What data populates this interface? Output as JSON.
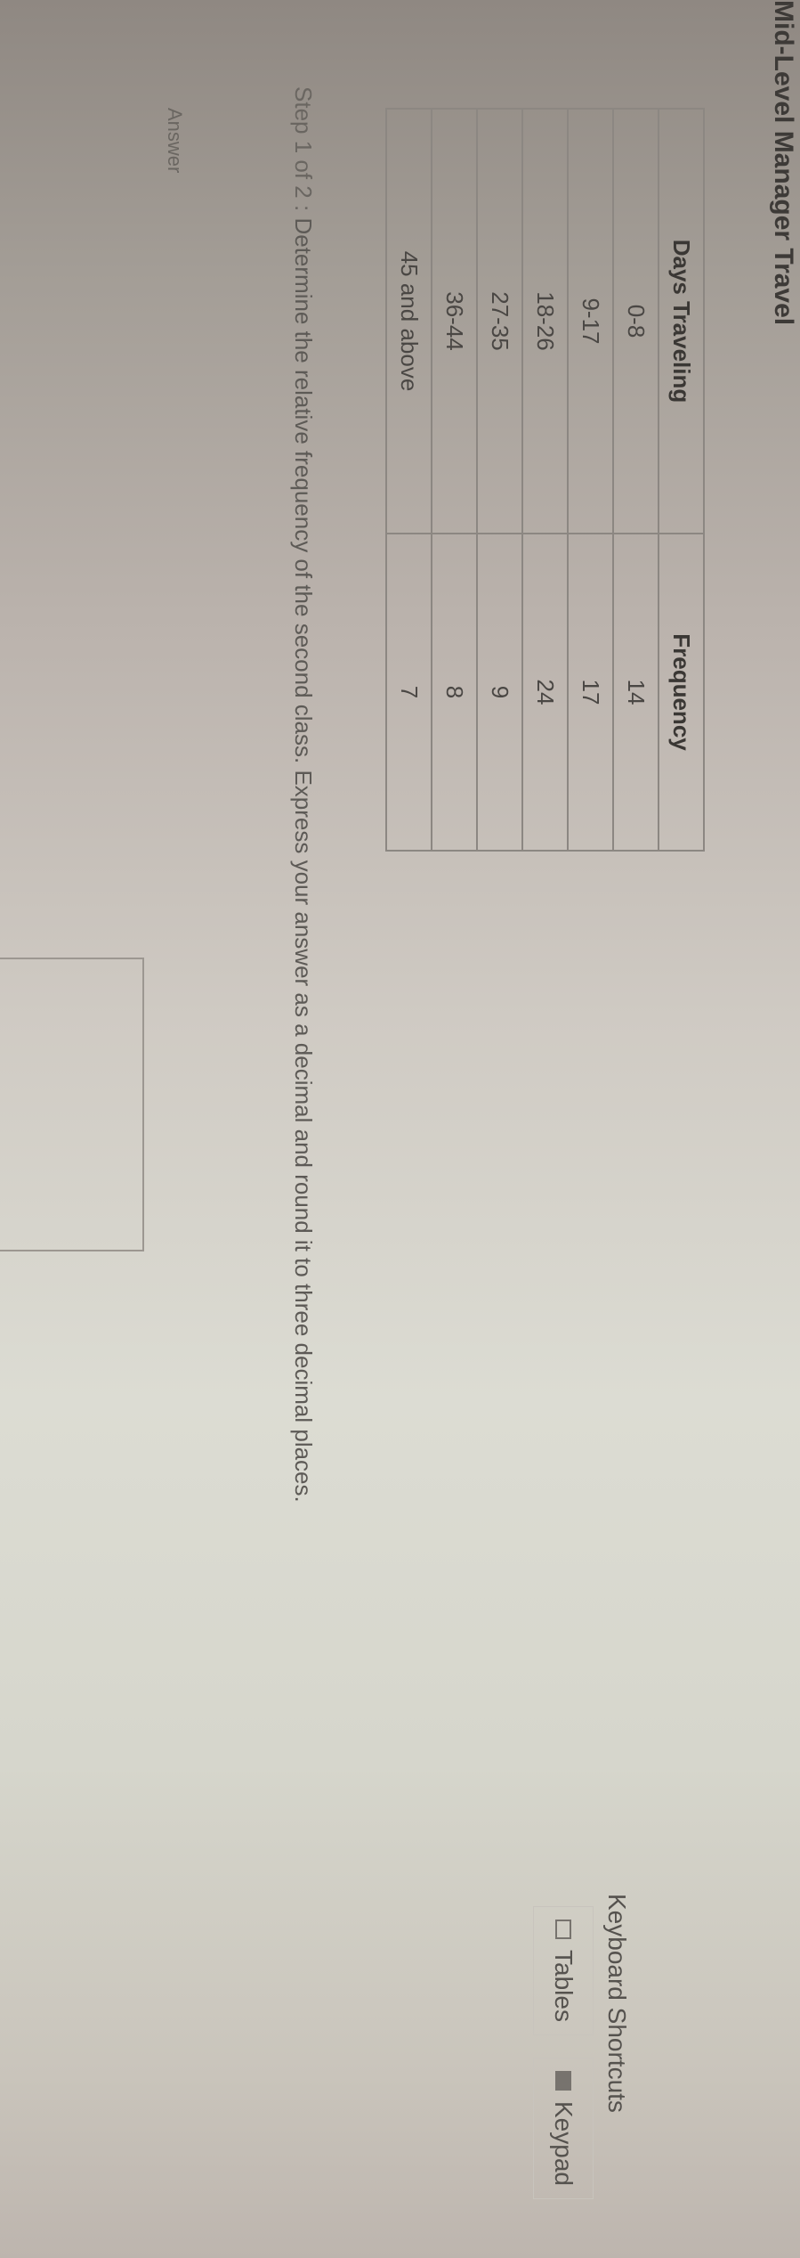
{
  "title": "Mid-Level Manager Travel",
  "table": {
    "headers": [
      "Days Traveling",
      "Frequency"
    ],
    "rows": [
      [
        "0-8",
        "14"
      ],
      [
        "9-17",
        "17"
      ],
      [
        "18-26",
        "24"
      ],
      [
        "27-35",
        "9"
      ],
      [
        "36-44",
        "8"
      ],
      [
        "45 and above",
        "7"
      ]
    ]
  },
  "step": {
    "label": "Step 1 of 2 :",
    "text": "Determine the relative frequency of the second class. Express your answer as a decimal and round it to three decimal places."
  },
  "answer": {
    "label": "Answer",
    "value": ""
  },
  "toolbar": {
    "tables_label": "Tables",
    "keypad_label": "Keypad",
    "tables_icon": "table-icon",
    "keypad_icon": "keyboard-icon"
  },
  "keyboard_shortcuts_label": "Keyboard Shortcuts"
}
